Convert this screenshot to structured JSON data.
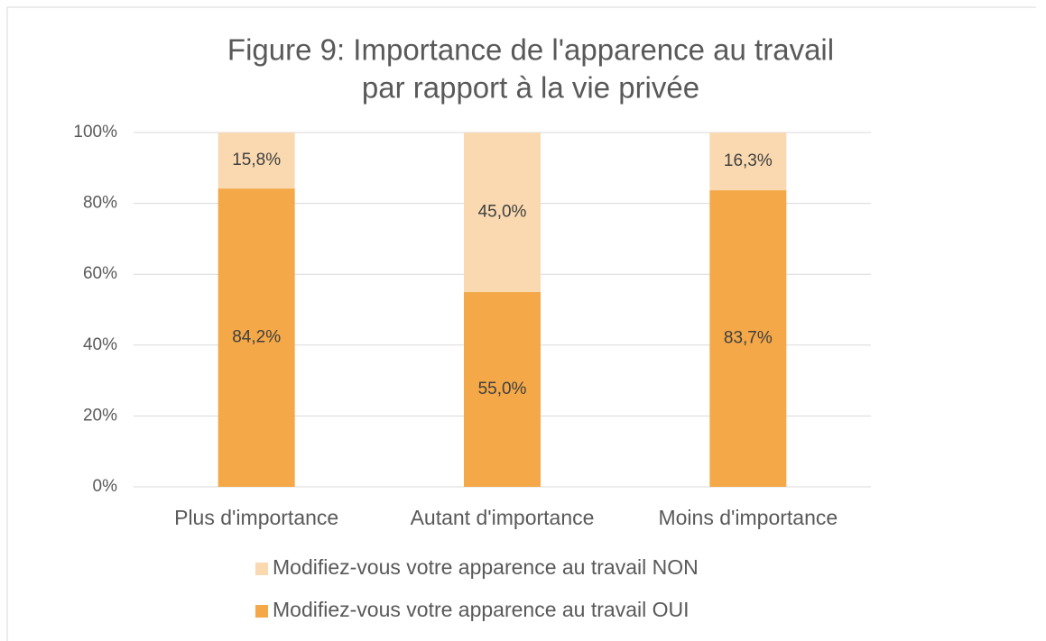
{
  "chart_data": {
    "type": "stacked_bar",
    "title": [
      "Figure 9: Importance de l'apparence au travail",
      "par rapport à la vie privée"
    ],
    "categories": [
      "Plus d'importance",
      "Autant d'importance",
      "Moins d'importance"
    ],
    "series": [
      {
        "name": "Modifiez-vous votre apparence au travail OUI",
        "color": "#f4a847",
        "values": [
          84.2,
          55.0,
          83.7
        ],
        "value_labels": [
          "84,2%",
          "55,0%",
          "83,7%"
        ]
      },
      {
        "name": "Modifiez-vous votre apparence au travail NON",
        "color": "#fad9b0",
        "values": [
          15.8,
          45.0,
          16.3
        ],
        "value_labels": [
          "15,8%",
          "45,0%",
          "16,3%"
        ]
      }
    ],
    "ylim": [
      0,
      100
    ],
    "yticks": [
      {
        "value": 0,
        "label": "0%"
      },
      {
        "value": 20,
        "label": "20%"
      },
      {
        "value": 40,
        "label": "40%"
      },
      {
        "value": 60,
        "label": "60%"
      },
      {
        "value": 80,
        "label": "80%"
      },
      {
        "value": 100,
        "label": "100%"
      }
    ],
    "grid": true,
    "legend": "bottom"
  }
}
